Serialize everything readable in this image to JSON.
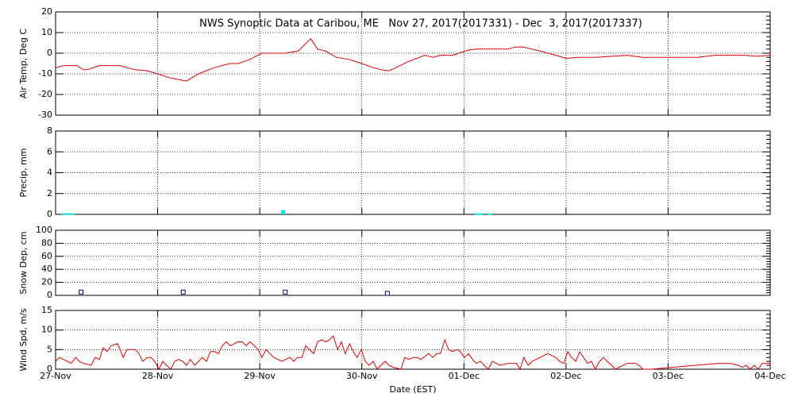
{
  "chart_data": [
    {
      "type": "line",
      "title": "NWS Synoptic Data at Caribou, ME   Nov 27, 2017(2017331) - Dec  3, 2017(2017337)",
      "ylabel": "Air Temp, Deg C",
      "xlim": [
        0,
        168
      ],
      "xticks": [
        0,
        24,
        48,
        72,
        96,
        120,
        144,
        168
      ],
      "ylim": [
        -30,
        20
      ],
      "yticks": [
        -30,
        -20,
        -10,
        0,
        10,
        20
      ],
      "grid": true,
      "series": [
        {
          "name": "Air Temp",
          "color": "#e00000",
          "x": [
            0,
            2,
            5,
            6.5,
            7.5,
            10.3,
            15,
            16.8,
            18.7,
            21.5,
            24,
            27,
            30.8,
            33.6,
            37.3,
            41,
            43,
            45.7,
            48.5,
            54,
            57,
            59,
            60,
            61.6,
            63.5,
            66,
            69,
            72,
            74.7,
            76.5,
            78.4,
            80,
            83,
            86.8,
            88.7,
            90.5,
            93.3,
            97,
            99,
            106.4,
            108,
            110,
            114,
            117.6,
            120,
            123,
            127,
            130.7,
            134.4,
            138,
            151,
            155,
            162,
            165,
            168
          ],
          "values": [
            -7,
            -6,
            -6,
            -8,
            -8,
            -6,
            -6,
            -7,
            -8,
            -8.5,
            -10,
            -12,
            -13.5,
            -10,
            -7,
            -5,
            -5,
            -3,
            0,
            0,
            1,
            5,
            7,
            2,
            1,
            -2,
            -3,
            -5,
            -7,
            -8,
            -8.5,
            -7,
            -4,
            -1,
            -2,
            -1,
            -1,
            1.5,
            2,
            2,
            3,
            3,
            1,
            -1,
            -2.5,
            -2,
            -2,
            -1.5,
            -1,
            -2,
            -2,
            -1,
            -1,
            -1.5,
            -1
          ]
        }
      ]
    },
    {
      "type": "bar",
      "ylabel": "Precip, mm",
      "xlim": [
        0,
        168
      ],
      "xticks": [
        0,
        24,
        48,
        72,
        96,
        120,
        144,
        168
      ],
      "ylim": [
        0,
        8
      ],
      "yticks": [
        0,
        2,
        4,
        6,
        8
      ],
      "grid": true,
      "series": [
        {
          "name": "Precip",
          "color": "#00e0e0",
          "x": [
            2,
            3,
            4,
            53.5,
            99,
            100,
            102
          ],
          "values": [
            0.1,
            0.1,
            0.1,
            0.4,
            0.1,
            0.1,
            0.1
          ]
        }
      ]
    },
    {
      "type": "scatter",
      "ylabel": "Snow Dep, cm",
      "xlim": [
        0,
        168
      ],
      "xticks": [
        0,
        24,
        48,
        72,
        96,
        120,
        144,
        168
      ],
      "ylim": [
        0,
        100
      ],
      "yticks": [
        0,
        20,
        40,
        60,
        80,
        100
      ],
      "grid": true,
      "series": [
        {
          "name": "Snow Depth",
          "color": "#000080",
          "x": [
            6,
            30,
            54,
            78
          ],
          "values": [
            2,
            2,
            2,
            0
          ]
        }
      ]
    },
    {
      "type": "line",
      "ylabel": "Wind Spd, m/s",
      "xlabel": "Date (EST)",
      "xlim": [
        0,
        168
      ],
      "xticks": [
        {
          "value": 0,
          "label": "27-Nov"
        },
        {
          "value": 24,
          "label": "28-Nov"
        },
        {
          "value": 48,
          "label": "29-Nov"
        },
        {
          "value": 72,
          "label": "30-Nov"
        },
        {
          "value": 96,
          "label": "01-Dec"
        },
        {
          "value": 120,
          "label": "02-Dec"
        },
        {
          "value": 144,
          "label": "03-Dec"
        },
        {
          "value": 168,
          "label": "04-Dec"
        }
      ],
      "ylim": [
        0,
        15
      ],
      "yticks": [
        0,
        5,
        10,
        15
      ],
      "grid": true,
      "series": [
        {
          "name": "Wind Speed",
          "color": "#e00000",
          "x": [
            0,
            0.9,
            2.8,
            3.7,
            4.7,
            5.6,
            6.5,
            8.4,
            9.3,
            10.3,
            11.2,
            12.1,
            13.1,
            14.6,
            15.9,
            16.8,
            17.7,
            18.7,
            19.6,
            20.5,
            21.5,
            22.4,
            23.3,
            24.3,
            25.2,
            26.1,
            27.1,
            28,
            28.9,
            29.9,
            30.8,
            31.7,
            32.7,
            33.6,
            34.5,
            35.5,
            36.4,
            37.3,
            38.3,
            39.2,
            40.1,
            41.1,
            42,
            42.9,
            43.9,
            44.8,
            45.7,
            46.7,
            47.6,
            48.5,
            49.5,
            50.4,
            51.3,
            52.3,
            53.2,
            54.1,
            55.1,
            56,
            56.9,
            57.9,
            58.8,
            59.7,
            60.7,
            61.6,
            62.5,
            63.5,
            64.4,
            65.3,
            66.3,
            67.2,
            68.1,
            69.1,
            70,
            70.9,
            71.9,
            72.8,
            73.7,
            74.7,
            75.6,
            76.5,
            77.5,
            78.4,
            79.3,
            81.2,
            82.1,
            83.1,
            84,
            84.9,
            85.9,
            87.7,
            88.7,
            89.6,
            90.5,
            91.5,
            92.4,
            93.3,
            94.3,
            95.2,
            96.1,
            97.1,
            98,
            98.9,
            99.9,
            100.8,
            101.7,
            102.7,
            103.6,
            104.5,
            106.4,
            108.3,
            109.2,
            110.1,
            111.1,
            112,
            113.9,
            115.7,
            117.6,
            118.5,
            119.5,
            120.4,
            121.3,
            122.3,
            123.2,
            124.1,
            125.1,
            126,
            126.9,
            127.9,
            128.8,
            129.7,
            130.7,
            131.6,
            134.4,
            136.3,
            137.2,
            138.1,
            140,
            155.9,
            158.7,
            160.5,
            161.5,
            162.4,
            163.3,
            164.3,
            165.2,
            166.1,
            168
          ],
          "values": [
            2,
            3,
            2,
            1.5,
            3,
            2,
            1.5,
            1,
            3,
            2.5,
            5.5,
            4.5,
            6,
            6.5,
            3,
            5,
            5,
            5,
            4,
            2,
            3,
            3,
            2,
            0,
            2,
            1,
            0,
            2,
            2.5,
            2,
            1,
            2.5,
            1,
            2,
            3,
            2,
            4.5,
            4.5,
            4,
            6,
            7,
            6,
            6.5,
            7,
            7,
            6,
            7,
            6,
            5,
            3,
            5,
            4,
            3,
            2.5,
            2,
            2.5,
            3,
            2,
            3,
            3,
            6,
            5,
            4,
            7,
            7.5,
            7,
            7.5,
            8.5,
            5,
            7,
            4,
            6.5,
            4.5,
            3,
            5,
            2,
            1,
            2,
            0,
            1,
            2,
            1,
            0.5,
            0,
            3,
            2.5,
            3,
            3,
            2.5,
            4,
            3,
            4,
            4,
            7.5,
            5,
            4.5,
            5,
            4.5,
            3,
            4,
            2.5,
            1.5,
            2,
            1,
            0,
            2,
            1.5,
            1,
            1.5,
            1.5,
            0,
            3,
            1,
            2,
            3,
            4,
            3,
            2,
            1.5,
            4.5,
            3,
            2,
            4.5,
            3,
            1.5,
            2,
            0,
            2,
            3,
            2,
            1,
            0,
            1.5,
            1.5,
            1,
            0,
            0,
            1.5,
            1.5,
            1,
            0.5,
            1,
            0,
            1,
            0,
            1.5,
            1.5
          ]
        }
      ]
    }
  ]
}
